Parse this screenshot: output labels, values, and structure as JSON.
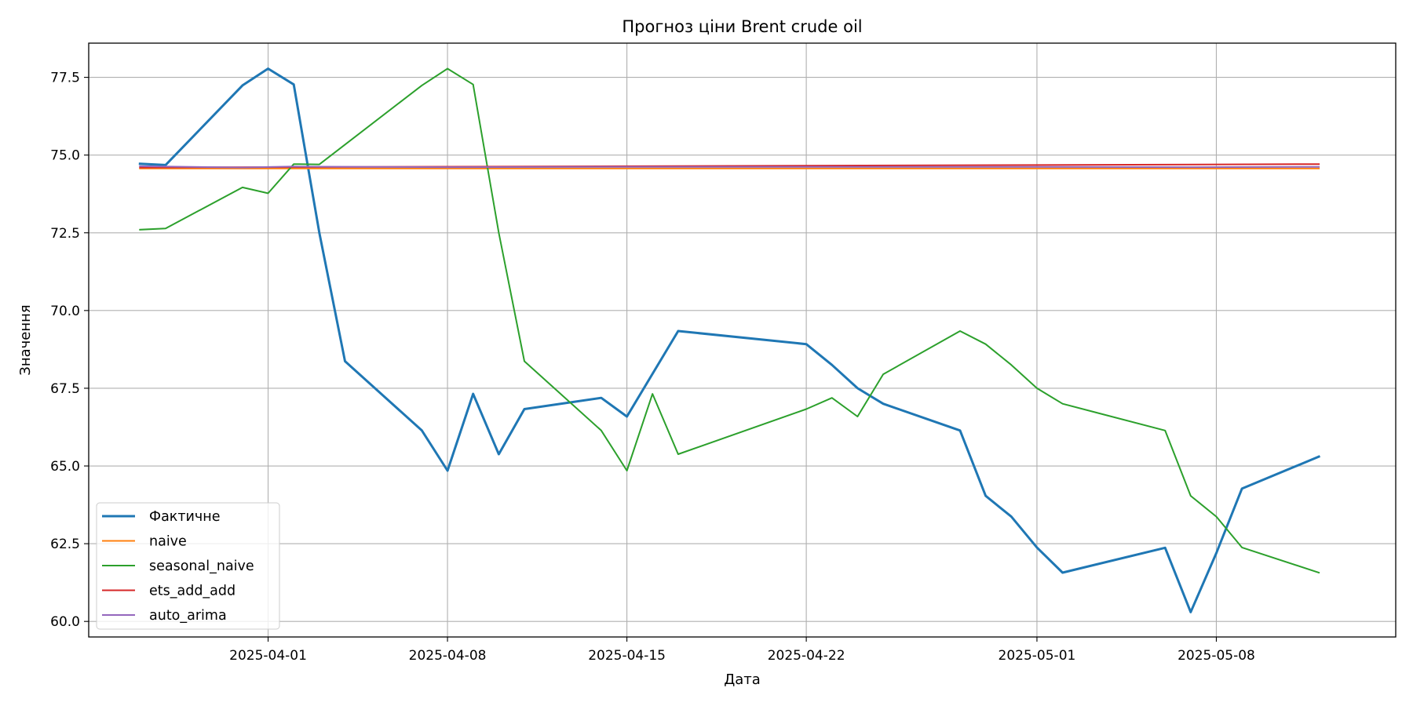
{
  "chart_data": {
    "type": "line",
    "title": "Прогноз ціни Brent crude oil",
    "xlabel": "Дата",
    "ylabel": "Значення",
    "x_ticks": [
      "2025-04-01",
      "2025-04-08",
      "2025-04-15",
      "2025-04-22",
      "2025-05-01",
      "2025-05-08"
    ],
    "y_ticks": [
      "60.0",
      "62.5",
      "65.0",
      "67.5",
      "70.0",
      "72.5",
      "75.0",
      "77.5"
    ],
    "xlim": [
      "2025-03-25",
      "2025-05-15"
    ],
    "ylim": [
      59.5,
      78.6
    ],
    "grid": true,
    "legend_position": "lower-left",
    "series": [
      {
        "name": "Фактичне",
        "color": "#1f77b4",
        "width": 3,
        "points": [
          [
            "2025-03-27",
            74.72
          ],
          [
            "2025-03-28",
            74.68
          ],
          [
            "2025-03-31",
            77.24
          ],
          [
            "2025-04-01",
            77.78
          ],
          [
            "2025-04-02",
            77.27
          ],
          [
            "2025-04-03",
            72.5
          ],
          [
            "2025-04-04",
            68.37
          ],
          [
            "2025-04-07",
            66.14
          ],
          [
            "2025-04-08",
            64.85
          ],
          [
            "2025-04-09",
            67.32
          ],
          [
            "2025-04-10",
            65.38
          ],
          [
            "2025-04-11",
            66.83
          ],
          [
            "2025-04-14",
            67.19
          ],
          [
            "2025-04-15",
            66.59
          ],
          [
            "2025-04-17",
            69.34
          ],
          [
            "2025-04-22",
            68.92
          ],
          [
            "2025-04-23",
            68.25
          ],
          [
            "2025-04-24",
            67.5
          ],
          [
            "2025-04-25",
            67.0
          ],
          [
            "2025-04-28",
            66.14
          ],
          [
            "2025-04-29",
            64.04
          ],
          [
            "2025-04-30",
            63.37
          ],
          [
            "2025-05-01",
            62.38
          ],
          [
            "2025-05-02",
            61.57
          ],
          [
            "2025-05-06",
            62.37
          ],
          [
            "2025-05-07",
            60.3
          ],
          [
            "2025-05-08",
            62.2
          ],
          [
            "2025-05-09",
            64.27
          ],
          [
            "2025-05-12",
            65.3
          ]
        ]
      },
      {
        "name": "naive",
        "color": "#ff7f0e",
        "width": 2,
        "points": [
          [
            "2025-03-27",
            74.57
          ],
          [
            "2025-05-12",
            74.57
          ]
        ]
      },
      {
        "name": "seasonal_naive",
        "color": "#2ca02c",
        "width": 2,
        "points": [
          [
            "2025-03-27",
            72.6
          ],
          [
            "2025-03-28",
            72.64
          ],
          [
            "2025-03-31",
            73.96
          ],
          [
            "2025-04-01",
            73.77
          ],
          [
            "2025-04-02",
            74.71
          ],
          [
            "2025-04-03",
            74.7
          ],
          [
            "2025-04-07",
            77.24
          ],
          [
            "2025-04-08",
            77.78
          ],
          [
            "2025-04-09",
            77.27
          ],
          [
            "2025-04-10",
            72.5
          ],
          [
            "2025-04-11",
            68.37
          ],
          [
            "2025-04-14",
            66.14
          ],
          [
            "2025-04-15",
            64.85
          ],
          [
            "2025-04-16",
            67.32
          ],
          [
            "2025-04-17",
            65.38
          ],
          [
            "2025-04-22",
            66.83
          ],
          [
            "2025-04-23",
            67.19
          ],
          [
            "2025-04-24",
            66.59
          ],
          [
            "2025-04-25",
            67.95
          ],
          [
            "2025-04-28",
            69.34
          ],
          [
            "2025-04-29",
            68.92
          ],
          [
            "2025-04-30",
            68.25
          ],
          [
            "2025-05-01",
            67.5
          ],
          [
            "2025-05-02",
            67.0
          ],
          [
            "2025-05-06",
            66.14
          ],
          [
            "2025-05-07",
            64.04
          ],
          [
            "2025-05-08",
            63.37
          ],
          [
            "2025-05-09",
            62.38
          ],
          [
            "2025-05-12",
            61.57
          ]
        ]
      },
      {
        "name": "ets_add_add",
        "color": "#d62728",
        "width": 2,
        "points": [
          [
            "2025-03-27",
            74.6
          ],
          [
            "2025-04-15",
            74.64
          ],
          [
            "2025-05-01",
            74.68
          ],
          [
            "2025-05-12",
            74.71
          ]
        ]
      },
      {
        "name": "auto_arima",
        "color": "#9467bd",
        "width": 2,
        "points": [
          [
            "2025-03-27",
            74.64
          ],
          [
            "2025-03-31",
            74.6
          ],
          [
            "2025-04-02",
            74.63
          ],
          [
            "2025-04-08",
            74.61
          ],
          [
            "2025-04-15",
            74.62
          ],
          [
            "2025-04-22",
            74.62
          ],
          [
            "2025-05-01",
            74.62
          ],
          [
            "2025-05-07",
            74.61
          ],
          [
            "2025-05-12",
            74.62
          ]
        ]
      }
    ]
  }
}
